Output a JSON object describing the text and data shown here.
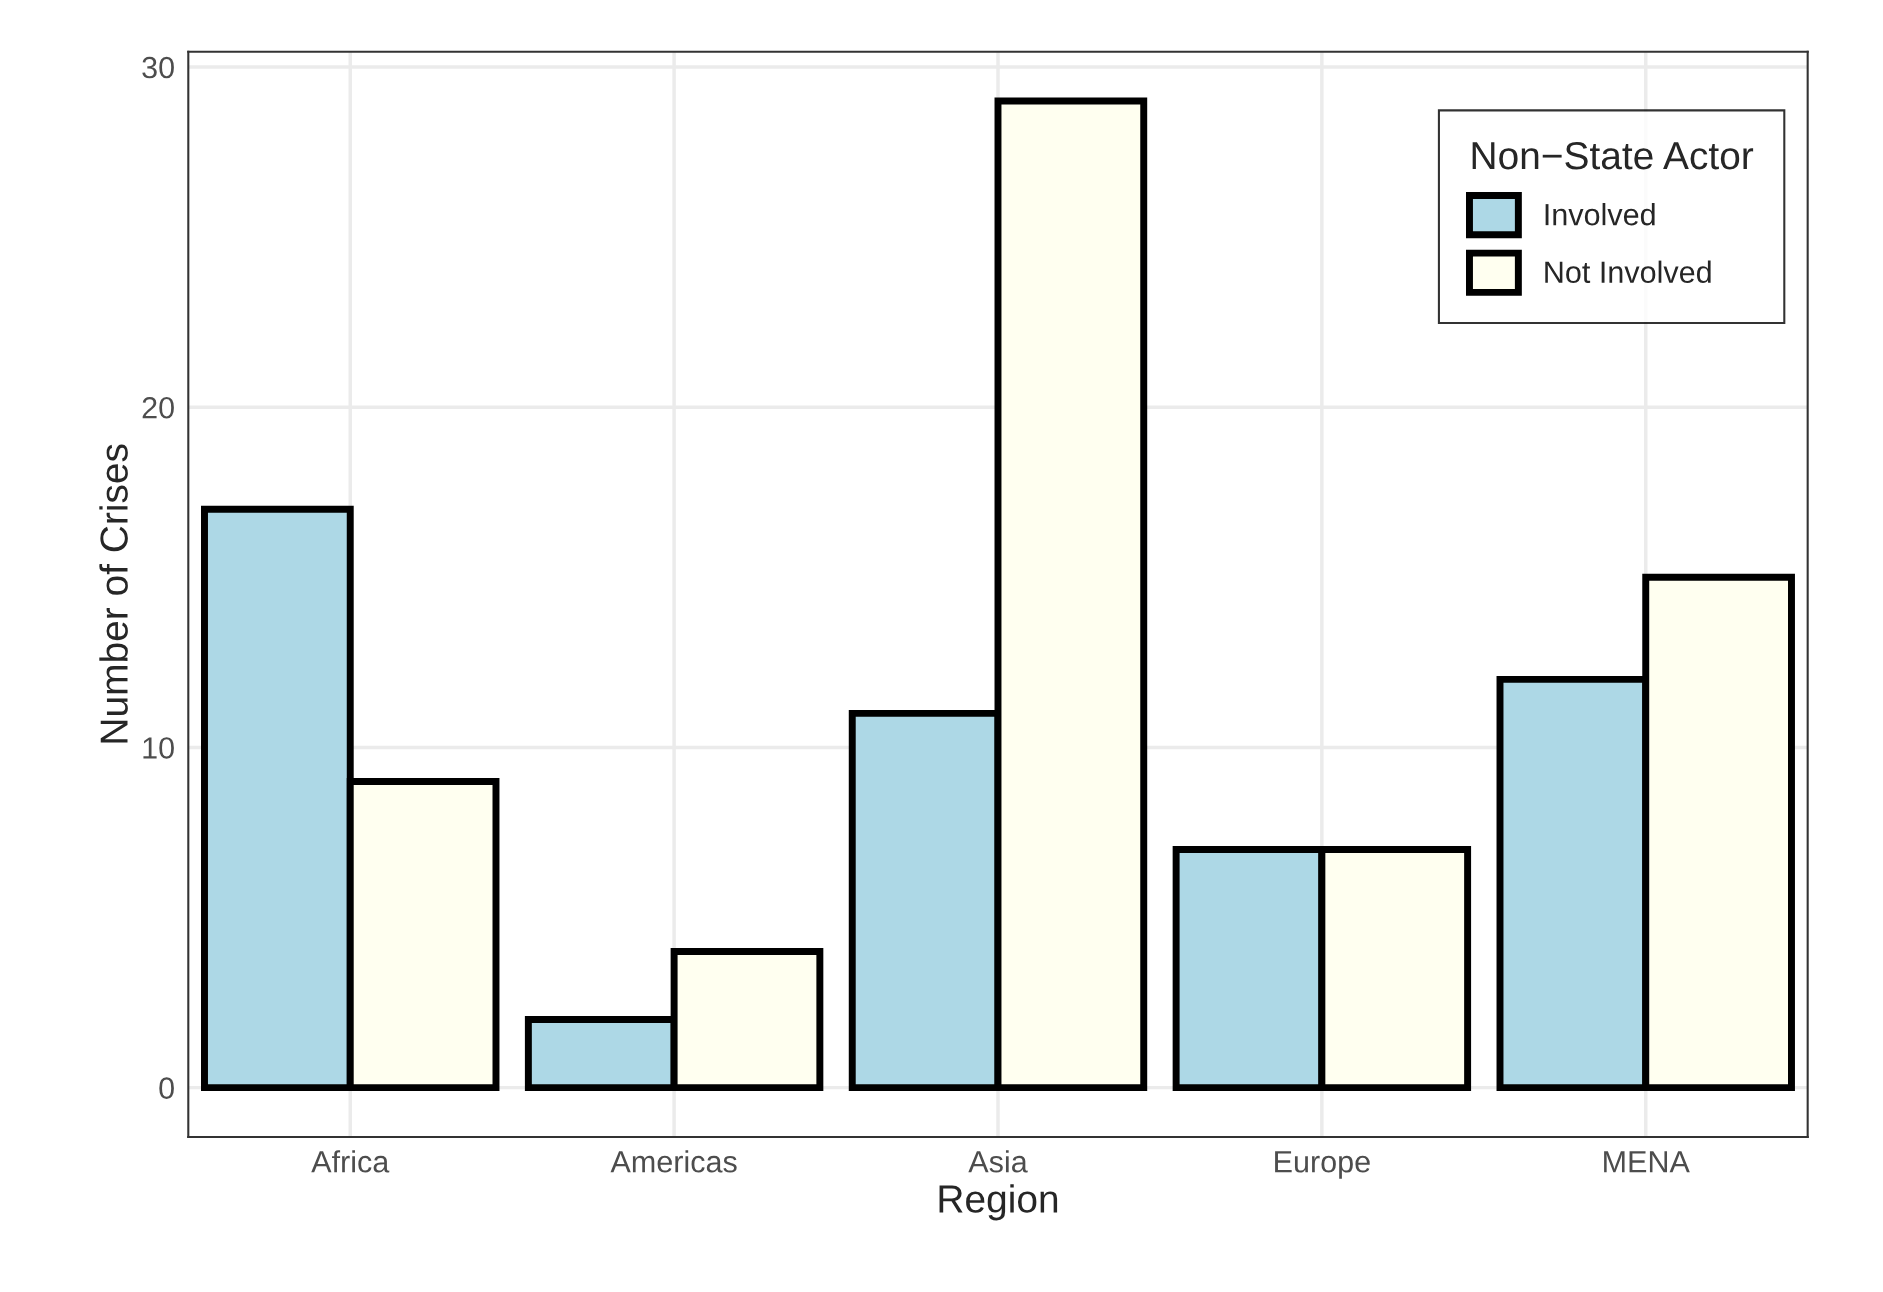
{
  "chart_data": {
    "type": "bar",
    "xlabel": "Region",
    "ylabel": "Number of Crises",
    "legend_title": "Non−State Actor",
    "categories": [
      "Africa",
      "Americas",
      "Asia",
      "Europe",
      "MENA"
    ],
    "series": [
      {
        "name": "Involved",
        "color": "#add8e6",
        "values": [
          17,
          2,
          11,
          7,
          12
        ]
      },
      {
        "name": "Not Involved",
        "color": "#fffff0",
        "values": [
          9,
          4,
          29,
          7,
          15
        ]
      }
    ],
    "ylim": [
      -1.45,
      30.45
    ],
    "yticks": [
      0,
      10,
      20,
      30
    ],
    "grid": true,
    "legend": "top right"
  }
}
